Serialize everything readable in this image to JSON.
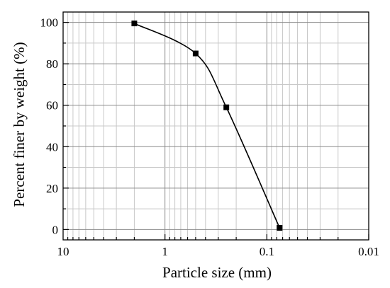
{
  "chart_data": {
    "type": "line",
    "title": "",
    "xlabel": "Particle size (mm)",
    "ylabel": "Percent finer by weight (%)",
    "x_scale": "log",
    "x_reversed": true,
    "xlim": [
      10,
      0.01
    ],
    "ylim": [
      -5,
      105
    ],
    "x_ticks": [
      {
        "value": 10,
        "label": "10"
      },
      {
        "value": 1,
        "label": "1"
      },
      {
        "value": 0.1,
        "label": "0.1"
      },
      {
        "value": 0.01,
        "label": "0.01"
      }
    ],
    "y_ticks": [
      {
        "value": 0,
        "label": "0"
      },
      {
        "value": 20,
        "label": "20"
      },
      {
        "value": 40,
        "label": "40"
      },
      {
        "value": 60,
        "label": "60"
      },
      {
        "value": 80,
        "label": "80"
      },
      {
        "value": 100,
        "label": "100"
      }
    ],
    "grid": true,
    "legend": "none",
    "series": [
      {
        "x": [
          2,
          0.5,
          0.25,
          0.075
        ],
        "y": [
          99.5,
          85,
          59,
          0.8
        ],
        "marker": "square",
        "color": "#000000"
      }
    ]
  }
}
